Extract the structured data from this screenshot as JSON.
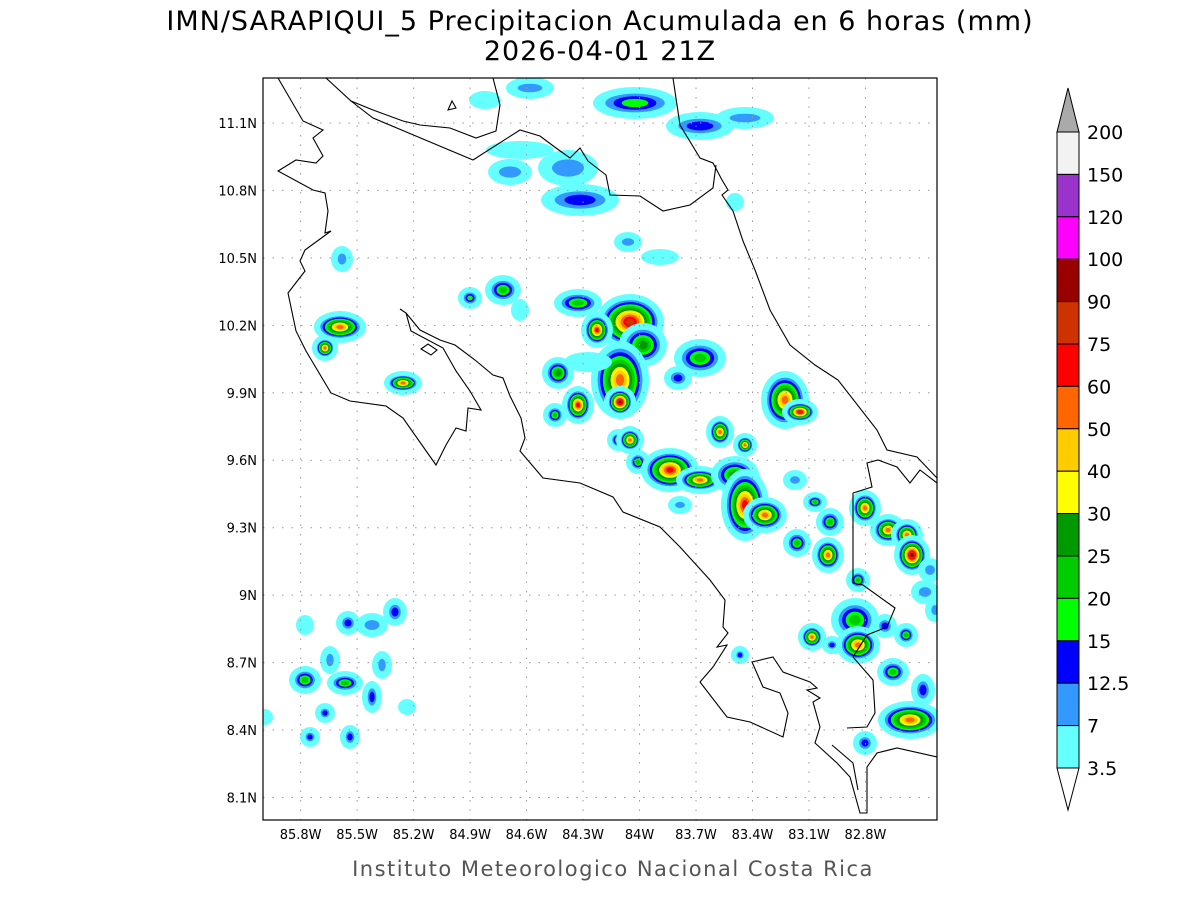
{
  "title": {
    "line1": "IMN/SARAPIQUI_5 Precipitacion Acumulada en 6 horas (mm)",
    "line2": "2026-04-01 21Z"
  },
  "footer": "Instituto Meteorologico Nacional Costa Rica",
  "map": {
    "lon_range": [
      -86.0,
      -82.42
    ],
    "lat_range": [
      8.0,
      11.3
    ],
    "lon_ticks": [
      {
        "value": -85.8,
        "label": "85.8W"
      },
      {
        "value": -85.5,
        "label": "85.5W"
      },
      {
        "value": -85.2,
        "label": "85.2W"
      },
      {
        "value": -84.9,
        "label": "84.9W"
      },
      {
        "value": -84.6,
        "label": "84.6W"
      },
      {
        "value": -84.3,
        "label": "84.3W"
      },
      {
        "value": -84.0,
        "label": "84W"
      },
      {
        "value": -83.7,
        "label": "83.7W"
      },
      {
        "value": -83.4,
        "label": "83.4W"
      },
      {
        "value": -83.1,
        "label": "83.1W"
      },
      {
        "value": -82.8,
        "label": "82.8W"
      }
    ],
    "lat_ticks": [
      {
        "value": 11.1,
        "label": "11.1N"
      },
      {
        "value": 10.8,
        "label": "10.8N"
      },
      {
        "value": 10.5,
        "label": "10.5N"
      },
      {
        "value": 10.2,
        "label": "10.2N"
      },
      {
        "value": 9.9,
        "label": "9.9N"
      },
      {
        "value": 9.6,
        "label": "9.6N"
      },
      {
        "value": 9.3,
        "label": "9.3N"
      },
      {
        "value": 9.0,
        "label": "9N"
      },
      {
        "value": 8.7,
        "label": "8.7N"
      },
      {
        "value": 8.4,
        "label": "8.4N"
      },
      {
        "value": 8.1,
        "label": "8.1N"
      }
    ]
  },
  "colorbar": {
    "labels": [
      "200",
      "150",
      "120",
      "100",
      "90",
      "75",
      "60",
      "50",
      "40",
      "30",
      "25",
      "20",
      "15",
      "12.5",
      "7",
      "3.5"
    ],
    "colors": [
      "#f2f2f2",
      "#9933cc",
      "#ff00ff",
      "#990000",
      "#cc3300",
      "#ff0000",
      "#ff6600",
      "#ffcc00",
      "#ffff00",
      "#009900",
      "#00cc00",
      "#00ff00",
      "#0000ff",
      "#3399ff",
      "#66ffff"
    ],
    "over_color": "#aaaaaa",
    "under_color": "#ffffff"
  }
}
